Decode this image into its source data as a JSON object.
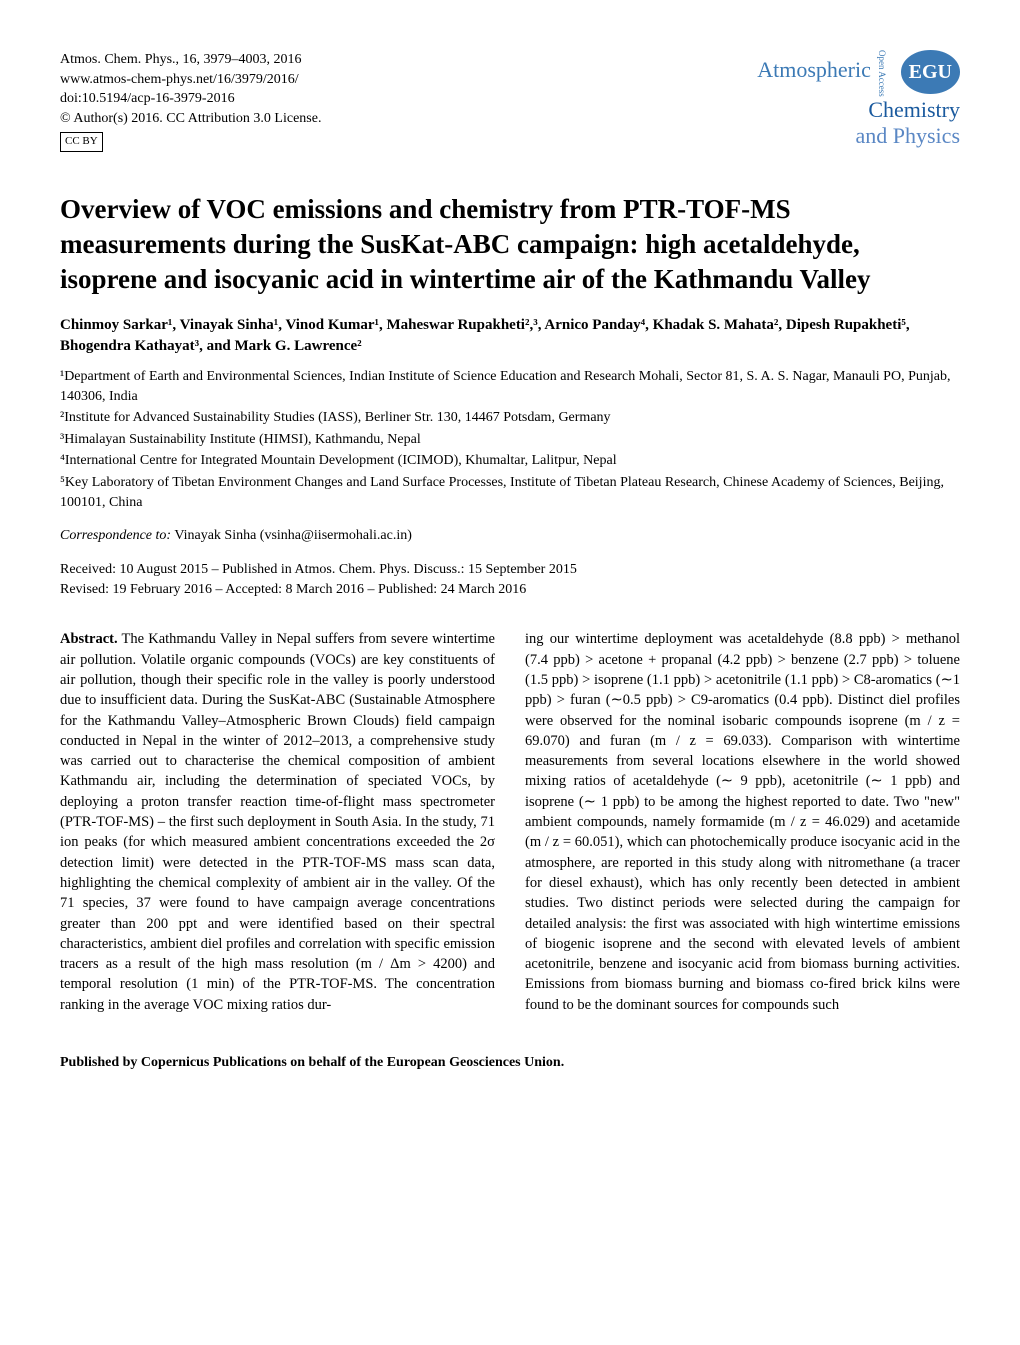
{
  "citation": {
    "line1": "Atmos. Chem. Phys., 16, 3979–4003, 2016",
    "line2": "www.atmos-chem-phys.net/16/3979/2016/",
    "line3": "doi:10.5194/acp-16-3979-2016",
    "line4": "© Author(s) 2016. CC Attribution 3.0 License.",
    "cc": "CC BY"
  },
  "journal_logo": {
    "line1": "Atmospheric",
    "line2": "Chemistry",
    "line3": "and Physics",
    "egu": "EGU",
    "open_access": "Open Access",
    "colors": {
      "line1": "#3c7ab5",
      "line2": "#1a5a9e",
      "line3": "#5a87c4",
      "egu_bg": "#3c7ab5"
    }
  },
  "title": "Overview of VOC emissions and chemistry from PTR-TOF-MS measurements during the SusKat-ABC campaign: high acetaldehyde, isoprene and isocyanic acid in wintertime air of the Kathmandu Valley",
  "authors": "Chinmoy Sarkar¹, Vinayak Sinha¹, Vinod Kumar¹, Maheswar Rupakheti²,³, Arnico Panday⁴, Khadak S. Mahata², Dipesh Rupakheti⁵, Bhogendra Kathayat³, and Mark G. Lawrence²",
  "affiliations": [
    "¹Department of Earth and Environmental Sciences, Indian Institute of Science Education and Research Mohali, Sector 81, S. A. S. Nagar, Manauli PO, Punjab, 140306, India",
    "²Institute for Advanced Sustainability Studies (IASS), Berliner Str. 130, 14467 Potsdam, Germany",
    "³Himalayan Sustainability Institute (HIMSI), Kathmandu, Nepal",
    "⁴International Centre for Integrated Mountain Development (ICIMOD), Khumaltar, Lalitpur, Nepal",
    "⁵Key Laboratory of Tibetan Environment Changes and Land Surface Processes, Institute of Tibetan Plateau Research, Chinese Academy of Sciences, Beijing, 100101, China"
  ],
  "correspondence_label": "Correspondence to:",
  "correspondence_text": " Vinayak Sinha (vsinha@iisermohali.ac.in)",
  "dates": {
    "line1": "Received: 10 August 2015 – Published in Atmos. Chem. Phys. Discuss.: 15 September 2015",
    "line2": "Revised: 19 February 2016 – Accepted: 8 March 2016 – Published: 24 March 2016"
  },
  "abstract_label": "Abstract.",
  "abstract_col1": " The Kathmandu Valley in Nepal suffers from severe wintertime air pollution. Volatile organic compounds (VOCs) are key constituents of air pollution, though their specific role in the valley is poorly understood due to insufficient data. During the SusKat-ABC (Sustainable Atmosphere for the Kathmandu Valley–Atmospheric Brown Clouds) field campaign conducted in Nepal in the winter of 2012–2013, a comprehensive study was carried out to characterise the chemical composition of ambient Kathmandu air, including the determination of speciated VOCs, by deploying a proton transfer reaction time-of-flight mass spectrometer (PTR-TOF-MS) – the first such deployment in South Asia. In the study, 71 ion peaks (for which measured ambient concentrations exceeded the 2σ detection limit) were detected in the PTR-TOF-MS mass scan data, highlighting the chemical complexity of ambient air in the valley. Of the 71 species, 37 were found to have campaign average concentrations greater than 200 ppt and were identified based on their spectral characteristics, ambient diel profiles and correlation with specific emission tracers as a result of the high mass resolution (m / Δm > 4200) and temporal resolution (1 min) of the PTR-TOF-MS. The concentration ranking in the average VOC mixing ratios dur-",
  "abstract_col2": "ing our wintertime deployment was acetaldehyde (8.8 ppb) > methanol (7.4 ppb) > acetone + propanal (4.2 ppb) > benzene (2.7 ppb) > toluene (1.5 ppb) > isoprene (1.1 ppb) > acetonitrile (1.1 ppb) > C8-aromatics (∼1 ppb) > furan (∼0.5 ppb) > C9-aromatics (0.4 ppb). Distinct diel profiles were observed for the nominal isobaric compounds isoprene (m / z = 69.070) and furan (m / z = 69.033). Comparison with wintertime measurements from several locations elsewhere in the world showed mixing ratios of acetaldehyde (∼ 9 ppb), acetonitrile (∼ 1 ppb) and isoprene (∼ 1 ppb) to be among the highest reported to date. Two \"new\" ambient compounds, namely formamide (m / z = 46.029) and acetamide (m / z = 60.051), which can photochemically produce isocyanic acid in the atmosphere, are reported in this study along with nitromethane (a tracer for diesel exhaust), which has only recently been detected in ambient studies. Two distinct periods were selected during the campaign for detailed analysis: the first was associated with high wintertime emissions of biogenic isoprene and the second with elevated levels of ambient acetonitrile, benzene and isocyanic acid from biomass burning activities. Emissions from biomass burning and biomass co-fired brick kilns were found to be the dominant sources for compounds such",
  "footer": "Published by Copernicus Publications on behalf of the European Geosciences Union."
}
